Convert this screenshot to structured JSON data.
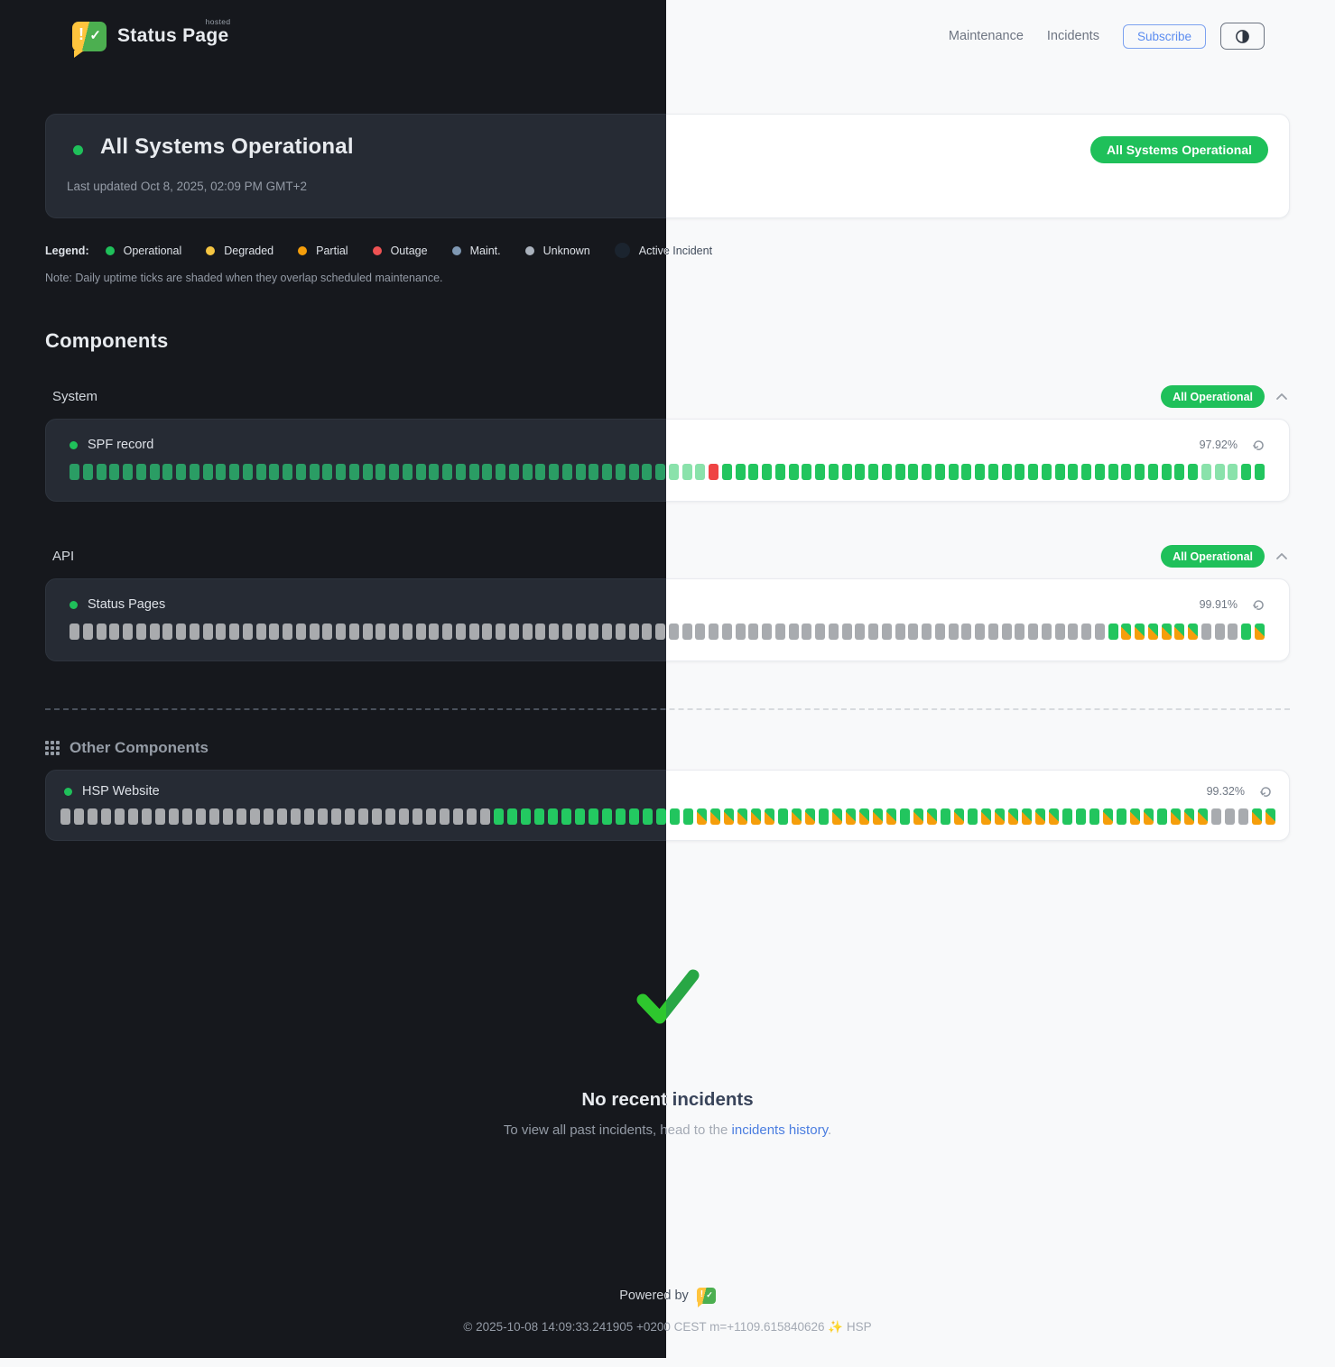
{
  "colors": {
    "accent_green": "#1fc05a",
    "tick_operational": "#22c55e",
    "tick_operational_dim": "#2a9d64",
    "tick_light_green": "#8ae2ab",
    "tick_outage_red": "#ef4444",
    "tick_unknown_gray": "#a8abaf",
    "tick_maintenance_orange": "#f59e0b",
    "link_blue": "#4a7de0",
    "subscribe_blue": "#5b8cf0"
  },
  "header": {
    "logo_alert_glyph": "!",
    "logo_check_glyph": "✓",
    "brand_name": "Status Page",
    "brand_superscript": "hosted",
    "nav": [
      {
        "label": "Maintenance"
      },
      {
        "label": "Incidents"
      }
    ],
    "subscribe_label": "Subscribe"
  },
  "status_banner": {
    "title": "All Systems Operational",
    "last_updated": "Last updated Oct 8, 2025, 02:09 PM GMT+2",
    "badge_label": "All Systems Operational"
  },
  "legend": {
    "label": "Legend:",
    "items": [
      {
        "label": "Operational",
        "color": "#1fc05a"
      },
      {
        "label": "Degraded",
        "color": "#f5c542"
      },
      {
        "label": "Partial",
        "color": "#f59e0b"
      },
      {
        "label": "Outage",
        "color": "#ee5253"
      },
      {
        "label": "Maint.",
        "color": "#7f98b3"
      },
      {
        "label": "Unknown",
        "color": "#aab2bd"
      },
      {
        "label": "Active Incident",
        "color": "#1b242f"
      }
    ],
    "note": "Note: Daily uptime ticks are shaded when they overlap scheduled maintenance."
  },
  "components": {
    "heading": "Components",
    "tick_status_key": {
      "g": "operational",
      "d": "operational-dim",
      "l": "partial-operational",
      "r": "outage",
      "u": "unknown",
      "m": "maintenance-overlap"
    },
    "groups": [
      {
        "name": "System",
        "badge_label": "All Operational",
        "rows": [
          {
            "name": "SPF record",
            "uptime_pct": "97.92%",
            "ticks": "dddddddddddddddddddddddddddddddddddddddddddddlllrgggggggggggggggggggggggggggggggggggglllgg"
          }
        ]
      },
      {
        "name": "API",
        "badge_label": "All Operational",
        "rows": [
          {
            "name": "Status Pages",
            "uptime_pct": "99.91%",
            "ticks": "uuuuuuuuuuuuuuuuuuuuuuuuuuuuuuuuuuuuuuuuuuuuuuuuuuuuuuuuuuuuuuuuuuuuuuuuuuuuuugmmmmmmuuugm"
          }
        ]
      }
    ],
    "other": {
      "heading": "Other Components",
      "rows": [
        {
          "name": "HSP Website",
          "uptime_pct": "99.32%",
          "ticks": "uuuuuuuuuuuuuuuuuuuuuuuuuuuuuuuugggggggggggggggmmmmmmgmmgmmmmmgmmgmgmmmmmmgggmgmmgmmmuuumm"
        }
      ]
    }
  },
  "incidents": {
    "title": "No recent incidents",
    "subtitle_prefix": "To view all past incidents, head to the ",
    "link_label": "incidents history",
    "subtitle_suffix": "."
  },
  "footer": {
    "powered_by_label": "Powered by",
    "copyright": "© 2025-10-08 14:09:33.241905 +0200 CEST m=+1109.615840626 ✨ HSP"
  }
}
